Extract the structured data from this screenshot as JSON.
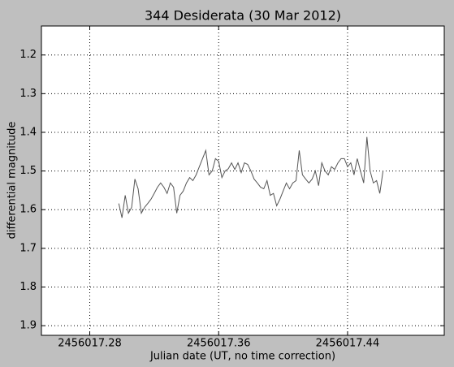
{
  "chart_data": {
    "type": "line",
    "title": "344 Desiderata (30 Mar 2012)",
    "x_label": "Julian date (UT, no time correction)",
    "y_label": "differential magnitude",
    "x": [
      2456017.298,
      2456017.3,
      2456017.302,
      2456017.304,
      2456017.306,
      2456017.308,
      2456017.31,
      2456017.312,
      2456017.314,
      2456017.316,
      2456017.318,
      2456017.32,
      2456017.322,
      2456017.324,
      2456017.326,
      2456017.328,
      2456017.33,
      2456017.332,
      2456017.334,
      2456017.336,
      2456017.338,
      2456017.34,
      2456017.342,
      2456017.344,
      2456017.346,
      2456017.348,
      2456017.35,
      2456017.352,
      2456017.354,
      2456017.356,
      2456017.358,
      2456017.36,
      2456017.362,
      2456017.364,
      2456017.366,
      2456017.368,
      2456017.37,
      2456017.372,
      2456017.374,
      2456017.376,
      2456017.378,
      2456017.38,
      2456017.382,
      2456017.384,
      2456017.386,
      2456017.388,
      2456017.39,
      2456017.392,
      2456017.394,
      2456017.396,
      2456017.398,
      2456017.4,
      2456017.402,
      2456017.404,
      2456017.406,
      2456017.408,
      2456017.41,
      2456017.412,
      2456017.414,
      2456017.416,
      2456017.418,
      2456017.42,
      2456017.422,
      2456017.424,
      2456017.426,
      2456017.428,
      2456017.43,
      2456017.432,
      2456017.434,
      2456017.436,
      2456017.438,
      2456017.44,
      2456017.442,
      2456017.444,
      2456017.446,
      2456017.448,
      2456017.45,
      2456017.452,
      2456017.454,
      2456017.456,
      2456017.458,
      2456017.46,
      2456017.462
    ],
    "series": [
      {
        "color": "#555555",
        "values": [
          1.584,
          1.621,
          1.563,
          1.609,
          1.594,
          1.521,
          1.546,
          1.609,
          1.594,
          1.584,
          1.573,
          1.558,
          1.542,
          1.531,
          1.542,
          1.558,
          1.531,
          1.542,
          1.609,
          1.563,
          1.552,
          1.531,
          1.517,
          1.525,
          1.51,
          1.489,
          1.468,
          1.447,
          1.51,
          1.5,
          1.468,
          1.475,
          1.517,
          1.5,
          1.494,
          1.479,
          1.496,
          1.479,
          1.504,
          1.479,
          1.483,
          1.5,
          1.521,
          1.531,
          1.542,
          1.546,
          1.525,
          1.563,
          1.558,
          1.59,
          1.573,
          1.552,
          1.531,
          1.546,
          1.531,
          1.525,
          1.447,
          1.51,
          1.521,
          1.531,
          1.521,
          1.5,
          1.538,
          1.479,
          1.5,
          1.51,
          1.489,
          1.496,
          1.479,
          1.468,
          1.468,
          1.489,
          1.479,
          1.51,
          1.468,
          1.5,
          1.531,
          1.412,
          1.5,
          1.531,
          1.525,
          1.558,
          1.5
        ]
      }
    ],
    "xlim": [
      2456017.25,
      2456017.5
    ],
    "xticks": [
      2456017.28,
      2456017.36,
      2456017.44
    ],
    "ylim": [
      1.925,
      1.125
    ],
    "yticks": [
      1.2,
      1.3,
      1.4,
      1.5,
      1.6,
      1.7,
      1.8,
      1.9
    ],
    "grid": true
  }
}
